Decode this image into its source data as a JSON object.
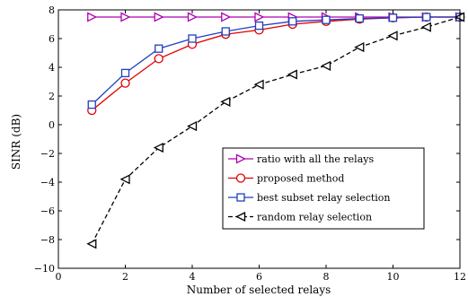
{
  "chart_data": {
    "type": "line",
    "title": "",
    "xlabel": "Number of selected relays",
    "ylabel": "SINR (dB)",
    "xlim": [
      0,
      12
    ],
    "ylim": [
      -10,
      8
    ],
    "xticks": [
      0,
      2,
      4,
      6,
      8,
      10,
      12
    ],
    "yticks": [
      -10,
      -8,
      -6,
      -4,
      -2,
      0,
      2,
      4,
      6,
      8
    ],
    "grid": false,
    "legend_position": "lower-right",
    "series": [
      {
        "name": "ratio with all the relays",
        "color": "#b000b0",
        "marker": "triangle-right",
        "dash": "solid",
        "x": [
          1,
          2,
          3,
          4,
          5,
          6,
          7,
          8,
          9,
          10,
          11,
          12
        ],
        "y": [
          7.5,
          7.5,
          7.5,
          7.5,
          7.5,
          7.5,
          7.5,
          7.5,
          7.5,
          7.5,
          7.5,
          7.5
        ]
      },
      {
        "name": "proposed method",
        "color": "#e00000",
        "marker": "circle",
        "dash": "solid",
        "x": [
          1,
          2,
          3,
          4,
          5,
          6,
          7,
          8,
          9,
          10,
          11,
          12
        ],
        "y": [
          1.0,
          2.9,
          4.6,
          5.6,
          6.3,
          6.6,
          7.0,
          7.2,
          7.35,
          7.45,
          7.5,
          7.5
        ]
      },
      {
        "name": "best subset relay selection",
        "color": "#1f3fbf",
        "marker": "square",
        "dash": "solid",
        "x": [
          1,
          2,
          3,
          4,
          5,
          6,
          7,
          8,
          9,
          10,
          11,
          12
        ],
        "y": [
          1.4,
          3.6,
          5.3,
          6.0,
          6.5,
          6.9,
          7.2,
          7.3,
          7.4,
          7.45,
          7.5,
          7.5
        ]
      },
      {
        "name": "random relay selection",
        "color": "#000000",
        "marker": "triangle-left",
        "dash": "dashed",
        "x": [
          1,
          2,
          3,
          4,
          5,
          6,
          7,
          8,
          9,
          10,
          11,
          12
        ],
        "y": [
          -8.3,
          -3.8,
          -1.6,
          -0.1,
          1.6,
          2.8,
          3.5,
          4.1,
          5.4,
          6.2,
          6.8,
          7.5
        ]
      }
    ]
  }
}
